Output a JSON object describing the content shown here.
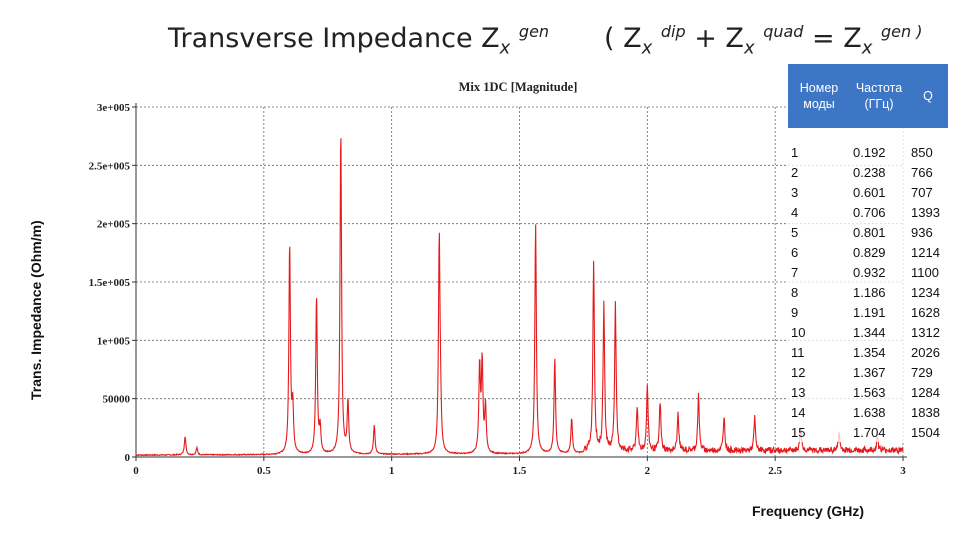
{
  "titles": {
    "left_main": "Transverse Impedance Z",
    "left_sub": "x",
    "left_sup": "gen",
    "right_open": "( Z",
    "right_sub1": "x",
    "right_sup1": "dip",
    "right_plus": " + Z",
    "right_sub2": "x",
    "right_sup2": "quad",
    "right_eq": " = Z",
    "right_sub3": "x",
    "right_sup3": "gen )"
  },
  "chart_data": {
    "type": "line",
    "title": "Mix 1DC [Magnitude]",
    "xlabel": "Frequency (GHz)",
    "ylabel": "Trans. Impedance (Ohm/m)",
    "xlim": [
      0,
      3
    ],
    "ylim": [
      0,
      300000
    ],
    "x_ticks": [
      0,
      0.5,
      1,
      1.5,
      2,
      2.5,
      3
    ],
    "x_tick_labels": [
      "0",
      "0.5",
      "1",
      "1.5",
      "2",
      "2.5",
      "3"
    ],
    "y_ticks": [
      0,
      50000,
      100000,
      150000,
      200000,
      250000,
      300000
    ],
    "y_tick_labels": [
      "0",
      "50000",
      "1e+005",
      "1.5e+005",
      "2e+005",
      "2.5e+005",
      "3e+005"
    ],
    "grid": true,
    "line_color": "#e41a1c",
    "peaks": [
      {
        "f": 0.192,
        "z": 16000
      },
      {
        "f": 0.238,
        "z": 6000
      },
      {
        "f": 0.601,
        "z": 181000
      },
      {
        "f": 0.613,
        "z": 40000
      },
      {
        "f": 0.706,
        "z": 137000
      },
      {
        "f": 0.72,
        "z": 22000
      },
      {
        "f": 0.801,
        "z": 280000
      },
      {
        "f": 0.829,
        "z": 45000
      },
      {
        "f": 0.932,
        "z": 25000
      },
      {
        "f": 1.186,
        "z": 184000
      },
      {
        "f": 1.191,
        "z": 30000
      },
      {
        "f": 1.344,
        "z": 75000
      },
      {
        "f": 1.354,
        "z": 78000
      },
      {
        "f": 1.367,
        "z": 40000
      },
      {
        "f": 1.563,
        "z": 198000
      },
      {
        "f": 1.638,
        "z": 82000
      },
      {
        "f": 1.704,
        "z": 30000
      },
      {
        "f": 1.79,
        "z": 163000
      },
      {
        "f": 1.83,
        "z": 125000
      },
      {
        "f": 1.875,
        "z": 125000
      },
      {
        "f": 1.96,
        "z": 38000
      },
      {
        "f": 2.0,
        "z": 56000
      },
      {
        "f": 2.05,
        "z": 42000
      },
      {
        "f": 2.12,
        "z": 32000
      },
      {
        "f": 2.2,
        "z": 48000
      },
      {
        "f": 2.3,
        "z": 30000
      },
      {
        "f": 2.42,
        "z": 28000
      },
      {
        "f": 2.6,
        "z": 20000
      },
      {
        "f": 2.75,
        "z": 15000
      },
      {
        "f": 2.9,
        "z": 12000
      }
    ]
  },
  "table": {
    "headers": [
      "Номер моды",
      "Частота (ГГц)",
      "Q"
    ],
    "rows": [
      [
        "1",
        "0.192",
        "850"
      ],
      [
        "2",
        "0.238",
        "766"
      ],
      [
        "3",
        "0.601",
        "707"
      ],
      [
        "4",
        "0.706",
        "1393"
      ],
      [
        "5",
        "0.801",
        "936"
      ],
      [
        "6",
        "0.829",
        "1214"
      ],
      [
        "7",
        "0.932",
        "1100"
      ],
      [
        "8",
        "1.186",
        "1234"
      ],
      [
        "9",
        "1.191",
        "1628"
      ],
      [
        "10",
        "1.344",
        "1312"
      ],
      [
        "11",
        "1.354",
        "2026"
      ],
      [
        "12",
        "1.367",
        "729"
      ],
      [
        "13",
        "1.563",
        "1284"
      ],
      [
        "14",
        "1.638",
        "1838"
      ],
      [
        "15",
        "1.704",
        "1504"
      ]
    ]
  }
}
